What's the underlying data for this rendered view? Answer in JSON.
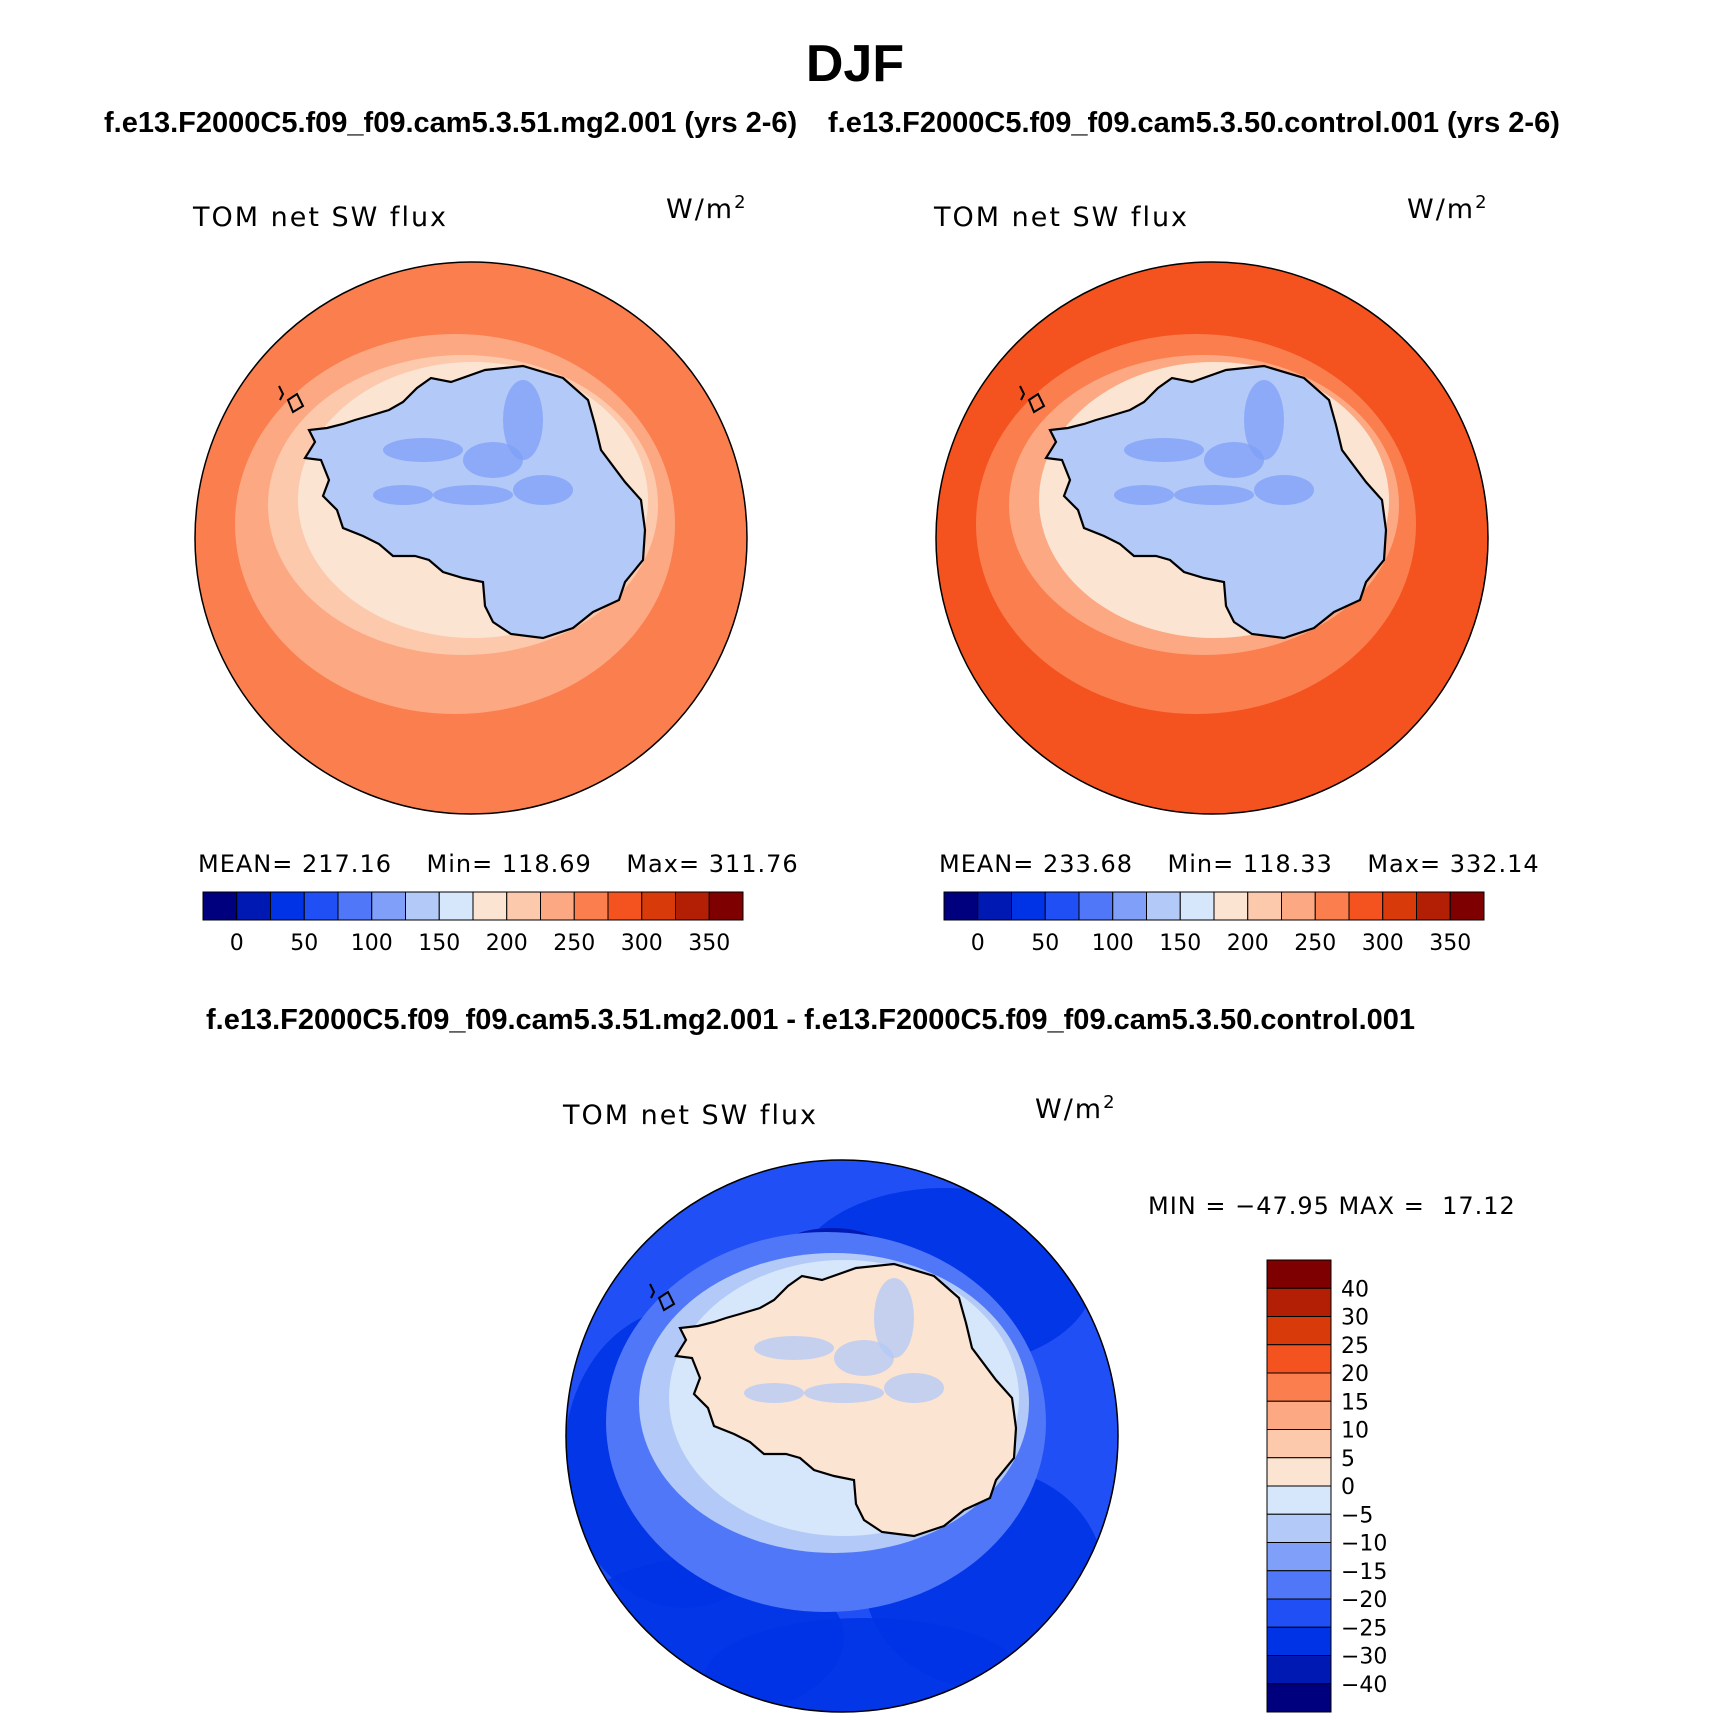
{
  "title": "DJF",
  "case_titles": {
    "left": "f.e13.F2000C5.f09_f09.cam5.3.51.mg2.001 (yrs 2-6)",
    "right": "f.e13.F2000C5.f09_f09.cam5.3.50.control.001 (yrs 2-6)",
    "diff": "f.e13.F2000C5.f09_f09.cam5.3.51.mg2.001 - f.e13.F2000C5.f09_f09.cam5.3.50.control.001"
  },
  "panels": [
    {
      "label": "TOM net SW flux",
      "units_base": "W/m",
      "units_exp": "2",
      "stats": {
        "mean_label": "MEAN=",
        "mean": "217.16",
        "min_label": "Min=",
        "min": "118.69",
        "max_label": "Max=",
        "max": "311.76"
      },
      "colorbar": {
        "colors": [
          "#00007f",
          "#0019b3",
          "#0033e6",
          "#1f4ff5",
          "#4f77f7",
          "#7f9ff8",
          "#b3c9f7",
          "#d6e6fb",
          "#fce4d2",
          "#fcc9ad",
          "#fca983",
          "#fb7e4e",
          "#f4531f",
          "#d93a09",
          "#b31f05",
          "#7f0000"
        ],
        "tick_labels": [
          "0",
          "50",
          "100",
          "150",
          "200",
          "250",
          "300",
          "350"
        ]
      },
      "map": {
        "ocean": "#fb7e4e",
        "ring_inner": "#fca983",
        "ring_near": "#fcc9ad",
        "coast": "#fce4d2",
        "land": "#b3c9f7",
        "land_accent": "#7f9ff8"
      }
    },
    {
      "label": "TOM net SW flux",
      "units_base": "W/m",
      "units_exp": "2",
      "stats": {
        "mean_label": "MEAN=",
        "mean": "233.68",
        "min_label": "Min=",
        "min": "118.33",
        "max_label": "Max=",
        "max": "332.14"
      },
      "colorbar": {
        "colors": [
          "#00007f",
          "#0019b3",
          "#0033e6",
          "#1f4ff5",
          "#4f77f7",
          "#7f9ff8",
          "#b3c9f7",
          "#d6e6fb",
          "#fce4d2",
          "#fcc9ad",
          "#fca983",
          "#fb7e4e",
          "#f4531f",
          "#d93a09",
          "#b31f05",
          "#7f0000"
        ],
        "tick_labels": [
          "0",
          "50",
          "100",
          "150",
          "200",
          "250",
          "300",
          "350"
        ]
      },
      "map": {
        "ocean": "#f4531f",
        "ring_inner": "#fb7e4e",
        "ring_near": "#fca983",
        "coast": "#fce4d2",
        "land": "#b3c9f7",
        "land_accent": "#7f9ff8"
      }
    }
  ],
  "diff_panel": {
    "label": "TOM net SW flux",
    "units_base": "W/m",
    "units_exp": "2",
    "minmax_text": "MIN = −47.95 MAX =  17.12",
    "colorbar": {
      "colors": [
        "#00007f",
        "#0019b3",
        "#0033e6",
        "#1f4ff5",
        "#4f77f7",
        "#7f9ff8",
        "#b3c9f7",
        "#d6e6fb",
        "#fce4d2",
        "#fcc9ad",
        "#fca983",
        "#fb7e4e",
        "#f4531f",
        "#d93a09",
        "#b31f05",
        "#7f0000"
      ],
      "tick_labels": [
        "−40",
        "−30",
        "−25",
        "−20",
        "−15",
        "−10",
        "−5",
        "0",
        "5",
        "10",
        "15",
        "20",
        "25",
        "30",
        "40"
      ]
    },
    "map": {
      "ocean": "#1f4ff5",
      "ring_inner": "#4f77f7",
      "ring_near": "#b3c9f7",
      "coast": "#d6e6fb",
      "land": "#fce4d2",
      "land_accent": "#b3c9f7",
      "deep": "#0033e6"
    }
  }
}
